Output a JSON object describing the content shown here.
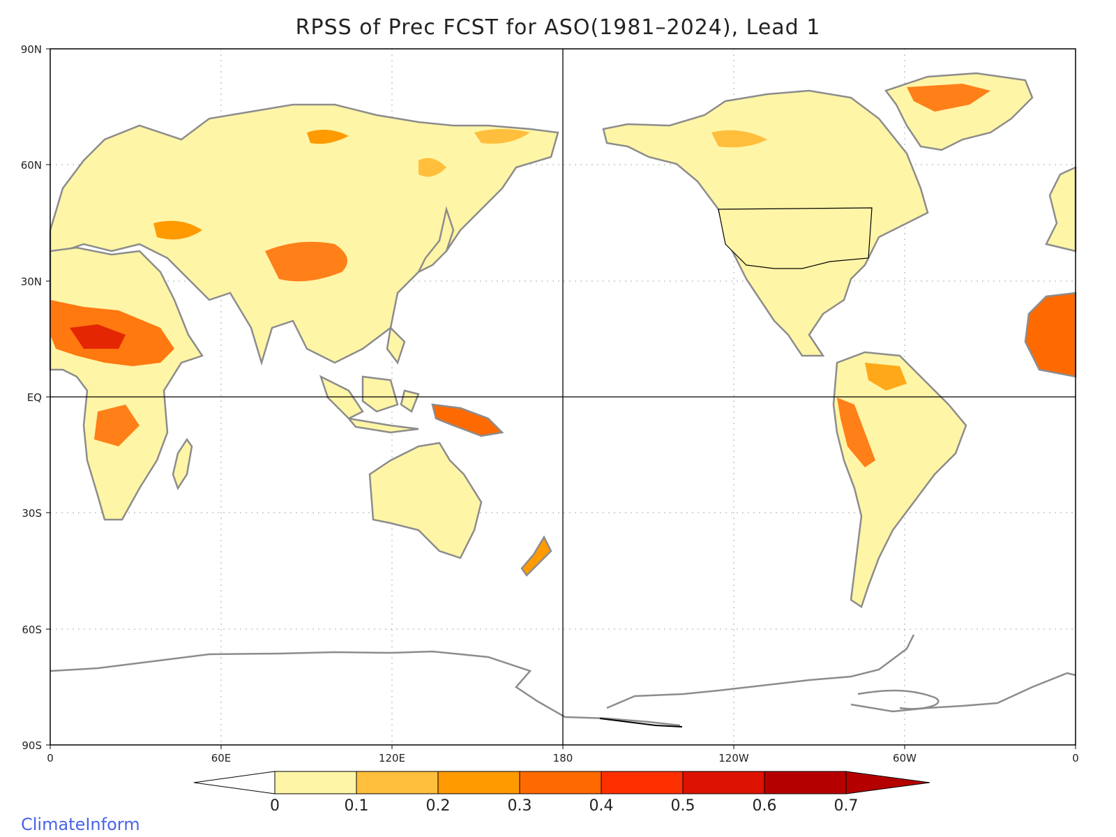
{
  "title": "RPSS of Prec FCST for ASO(1981–2024), Lead 1",
  "watermark": "ClimateInform",
  "axes": {
    "lat_ticks": [
      "90N",
      "60N",
      "30N",
      "EQ",
      "30S",
      "60S",
      "90S"
    ],
    "lon_ticks": [
      "0",
      "60E",
      "120E",
      "180",
      "120W",
      "60W",
      "0"
    ]
  },
  "colorbar": {
    "labels": [
      "0",
      "0.1",
      "0.2",
      "0.3",
      "0.4",
      "0.5",
      "0.6",
      "0.7"
    ],
    "colors": [
      "#ffffff",
      "#fff5a6",
      "#ffbe3c",
      "#ff9a00",
      "#ff6a00",
      "#ff3000",
      "#dd1200",
      "#b50000",
      "#b50000"
    ]
  },
  "colors": {
    "land_outline": "#8c8c8c",
    "lakes": "#000000",
    "border": "#000000",
    "gridline": "#aaaaaa"
  }
}
